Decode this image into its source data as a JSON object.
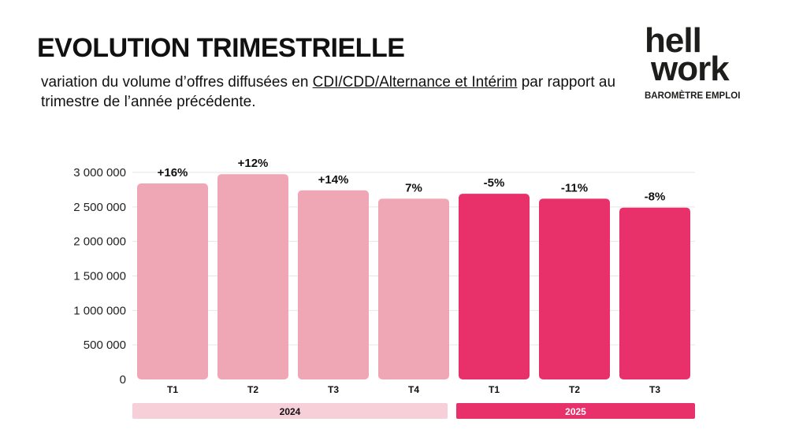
{
  "title": "EVOLUTION TRIMESTRIELLE",
  "subtitle": {
    "before": "variation du volume d’offres diffusées en ",
    "underlined": "CDI/CDD/Alternance et Intérim",
    "after": " par rapport au trimestre de l’année précédente."
  },
  "logo": {
    "line1": "hell",
    "line2": "work",
    "tagline": "BAROMÈTRE EMPLOI"
  },
  "colors": {
    "y2024": "#f0a7b5",
    "y2025": "#e8306a",
    "band2024": "#f7cfd9",
    "grid": "#e6e6e6"
  },
  "chart_data": {
    "type": "bar",
    "categories": [
      "T1",
      "T2",
      "T3",
      "T4",
      "T1",
      "T2",
      "T3"
    ],
    "groups": [
      {
        "label": "2024",
        "count": 4
      },
      {
        "label": "2025",
        "count": 3
      }
    ],
    "values": [
      2840000,
      2975000,
      2740000,
      2620000,
      2690000,
      2620000,
      2490000
    ],
    "data_labels": [
      "+16%",
      "+12%",
      "+14%",
      "7%",
      "-5%",
      "-11%",
      "-8%"
    ],
    "ylim": [
      0,
      3000000
    ],
    "yticks": [
      0,
      500000,
      1000000,
      1500000,
      2000000,
      2500000,
      3000000
    ],
    "ytick_labels": [
      "0",
      "500 000",
      "1 000 000",
      "1 500 000",
      "2 000 000",
      "2 500 000",
      "3 000 000"
    ],
    "grid": true
  }
}
